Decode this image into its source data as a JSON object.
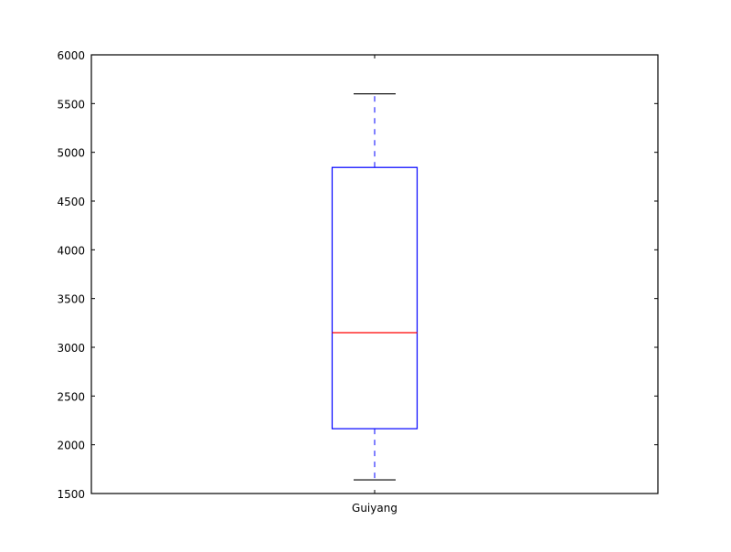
{
  "chart_data": {
    "type": "box",
    "title": "",
    "xlabel": "",
    "ylabel": "",
    "categories": [
      "Guiyang"
    ],
    "series": [
      {
        "category": "Guiyang",
        "whisker_low": 1640,
        "q1": 2165,
        "median": 3150,
        "q3": 4845,
        "whisker_high": 5600
      }
    ],
    "ylim": [
      1500,
      6000
    ],
    "yticks": [
      1500,
      2000,
      2500,
      3000,
      3500,
      4000,
      4500,
      5000,
      5500,
      6000
    ],
    "grid": false,
    "colors": {
      "box": "#0000ff",
      "median": "#ff0000",
      "whisker": "#0000ff",
      "cap": "#000000",
      "axes": "#000000"
    }
  }
}
